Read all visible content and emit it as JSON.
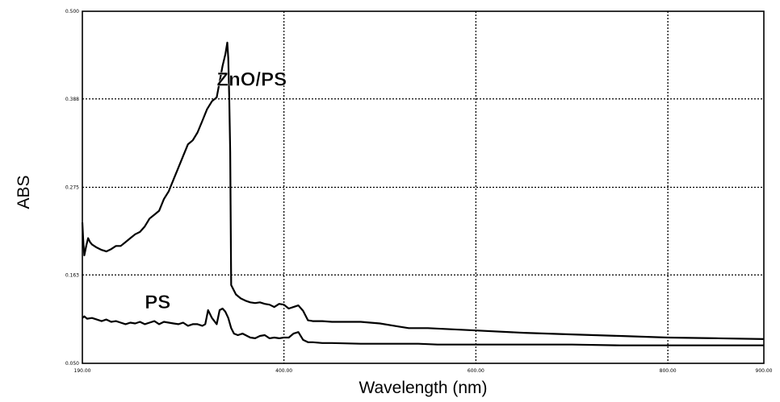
{
  "chart_data": {
    "type": "line",
    "xlabel": "Wavelength (nm)",
    "ylabel": "ABS",
    "xlim": [
      190.0,
      900.0
    ],
    "ylim": [
      0.05,
      0.5
    ],
    "x_ticks": [
      190.0,
      400.0,
      600.0,
      800.0,
      900.0
    ],
    "x_tick_labels": [
      "190.00",
      "400.00",
      "600.00",
      "800.00",
      "900.00"
    ],
    "y_ticks": [
      0.05,
      0.163,
      0.275,
      0.388,
      0.5
    ],
    "y_tick_labels": [
      "0.050",
      "0.163",
      "0.275",
      "0.388",
      "0.500"
    ],
    "grid": true,
    "grid_style": "dotted",
    "annotations": [
      {
        "text": "ZnO/PS",
        "x": 330,
        "y": 0.405
      },
      {
        "text": "PS",
        "x": 255,
        "y": 0.12
      }
    ],
    "series": [
      {
        "label": "ZnO/PS",
        "x": [
          190,
          191,
          192,
          194,
          196,
          198,
          200,
          205,
          210,
          215,
          220,
          225,
          230,
          235,
          240,
          245,
          250,
          255,
          260,
          265,
          270,
          275,
          280,
          285,
          290,
          295,
          300,
          305,
          310,
          315,
          320,
          325,
          330,
          333,
          336,
          339,
          341,
          342,
          343,
          344,
          345,
          350,
          355,
          360,
          365,
          370,
          375,
          380,
          385,
          390,
          395,
          400,
          405,
          410,
          415,
          420,
          425,
          430,
          440,
          450,
          480,
          500,
          520,
          530,
          550,
          600,
          650,
          700,
          750,
          800,
          850,
          900
        ],
        "y": [
          0.23,
          0.205,
          0.188,
          0.2,
          0.21,
          0.205,
          0.202,
          0.198,
          0.195,
          0.193,
          0.196,
          0.2,
          0.2,
          0.205,
          0.21,
          0.215,
          0.218,
          0.225,
          0.235,
          0.24,
          0.245,
          0.26,
          0.27,
          0.285,
          0.3,
          0.315,
          0.33,
          0.335,
          0.345,
          0.36,
          0.375,
          0.385,
          0.39,
          0.41,
          0.43,
          0.445,
          0.46,
          0.44,
          0.39,
          0.32,
          0.15,
          0.138,
          0.133,
          0.13,
          0.128,
          0.127,
          0.128,
          0.126,
          0.125,
          0.122,
          0.126,
          0.125,
          0.12,
          0.122,
          0.124,
          0.117,
          0.105,
          0.104,
          0.104,
          0.103,
          0.103,
          0.101,
          0.097,
          0.095,
          0.095,
          0.092,
          0.089,
          0.087,
          0.085,
          0.083,
          0.082,
          0.081
        ]
      },
      {
        "label": "PS",
        "x": [
          190,
          192,
          195,
          200,
          205,
          210,
          215,
          220,
          225,
          230,
          235,
          240,
          245,
          250,
          255,
          260,
          265,
          270,
          275,
          280,
          285,
          290,
          295,
          300,
          305,
          310,
          315,
          318,
          321,
          325,
          330,
          333,
          336,
          339,
          342,
          345,
          348,
          352,
          357,
          360,
          365,
          370,
          375,
          380,
          385,
          390,
          395,
          400,
          405,
          410,
          415,
          420,
          425,
          430,
          440,
          450,
          480,
          500,
          520,
          540,
          560,
          600,
          650,
          700,
          750,
          800,
          850,
          900
        ],
        "y": [
          0.108,
          0.11,
          0.107,
          0.108,
          0.106,
          0.104,
          0.106,
          0.103,
          0.104,
          0.102,
          0.1,
          0.102,
          0.101,
          0.103,
          0.1,
          0.102,
          0.104,
          0.1,
          0.103,
          0.102,
          0.101,
          0.1,
          0.102,
          0.098,
          0.1,
          0.1,
          0.098,
          0.1,
          0.118,
          0.108,
          0.1,
          0.118,
          0.12,
          0.116,
          0.108,
          0.095,
          0.088,
          0.086,
          0.088,
          0.086,
          0.083,
          0.082,
          0.085,
          0.086,
          0.082,
          0.083,
          0.082,
          0.083,
          0.083,
          0.088,
          0.09,
          0.08,
          0.077,
          0.077,
          0.076,
          0.076,
          0.075,
          0.075,
          0.075,
          0.075,
          0.074,
          0.074,
          0.074,
          0.074,
          0.073,
          0.073,
          0.073,
          0.073
        ]
      }
    ]
  }
}
